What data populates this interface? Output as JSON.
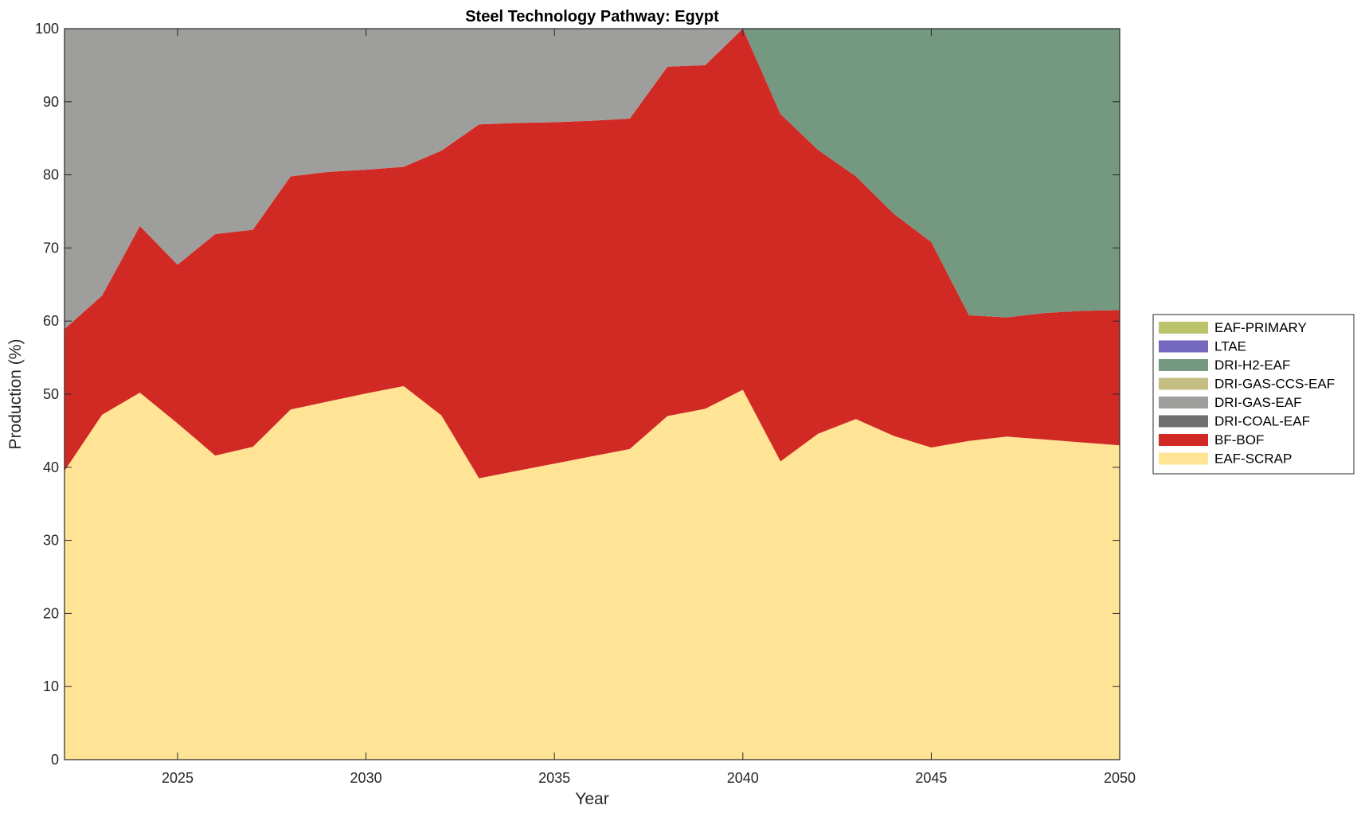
{
  "chart_data": {
    "type": "area",
    "stacked": true,
    "title": "Steel Technology Pathway: Egypt",
    "xlabel": "Year",
    "ylabel": "Production (%)",
    "xlim": [
      2022,
      2050
    ],
    "ylim": [
      0,
      100
    ],
    "xticks": [
      2025,
      2030,
      2035,
      2040,
      2045,
      2050
    ],
    "yticks": [
      0,
      10,
      20,
      30,
      40,
      50,
      60,
      70,
      80,
      90,
      100
    ],
    "grid": false,
    "legend_position": "right",
    "x": [
      2022,
      2023,
      2024,
      2025,
      2026,
      2027,
      2028,
      2029,
      2030,
      2031,
      2032,
      2033,
      2034,
      2035,
      2036,
      2037,
      2038,
      2039,
      2040,
      2041,
      2042,
      2043,
      2044,
      2045,
      2046,
      2047,
      2048,
      2049,
      2050
    ],
    "series": [
      {
        "name": "EAF-SCRAP",
        "color": "#FFE495",
        "values": [
          39.5,
          47.2,
          50.2,
          46.0,
          41.6,
          42.8,
          47.9,
          49.0,
          50.1,
          51.1,
          47.1,
          38.5,
          39.5,
          40.5,
          41.5,
          42.5,
          47.0,
          48.0,
          50.6,
          40.8,
          44.6,
          46.6,
          44.3,
          42.7,
          43.6,
          44.2,
          43.8,
          43.4,
          43.0
        ]
      },
      {
        "name": "BF-BOF",
        "color": "#D12A24",
        "values": [
          19.4,
          16.3,
          22.8,
          21.7,
          30.3,
          29.7,
          31.9,
          31.4,
          30.6,
          30.0,
          36.2,
          48.4,
          47.6,
          46.7,
          45.9,
          45.2,
          47.8,
          47.0,
          49.4,
          47.5,
          38.8,
          33.2,
          30.4,
          28.1,
          17.2,
          16.3,
          17.3,
          18.0,
          18.5
        ]
      },
      {
        "name": "DRI-COAL-EAF",
        "color": "#6E6E6E",
        "values": [
          0,
          0,
          0,
          0,
          0,
          0,
          0,
          0,
          0,
          0,
          0,
          0,
          0,
          0,
          0,
          0,
          0,
          0,
          0,
          0,
          0,
          0,
          0,
          0,
          0,
          0,
          0,
          0,
          0
        ]
      },
      {
        "name": "DRI-GAS-EAF",
        "color": "#9E9E9C",
        "values": [
          41.1,
          36.5,
          27.0,
          32.3,
          28.1,
          27.5,
          20.2,
          19.6,
          19.3,
          18.9,
          16.7,
          13.1,
          12.9,
          12.8,
          12.6,
          12.3,
          5.2,
          5.0,
          0,
          0,
          0,
          0,
          0,
          0,
          0,
          0,
          0,
          0,
          0
        ]
      },
      {
        "name": "DRI-GAS-CCS-EAF",
        "color": "#C4BE82",
        "values": [
          0,
          0,
          0,
          0,
          0,
          0,
          0,
          0,
          0,
          0,
          0,
          0,
          0,
          0,
          0,
          0,
          0,
          0,
          0,
          0,
          0,
          0,
          0,
          0,
          0,
          0,
          0,
          0,
          0
        ]
      },
      {
        "name": "DRI-H2-EAF",
        "color": "#759880",
        "values": [
          0,
          0,
          0,
          0,
          0,
          0,
          0,
          0,
          0,
          0,
          0,
          0,
          0,
          0,
          0,
          0,
          0,
          0,
          0,
          11.7,
          16.6,
          20.2,
          25.3,
          29.2,
          39.2,
          39.5,
          38.9,
          38.6,
          38.5
        ]
      },
      {
        "name": "LTAE",
        "color": "#7468BF",
        "values": [
          0,
          0,
          0,
          0,
          0,
          0,
          0,
          0,
          0,
          0,
          0,
          0,
          0,
          0,
          0,
          0,
          0,
          0,
          0,
          0,
          0,
          0,
          0,
          0,
          0,
          0,
          0,
          0,
          0
        ]
      },
      {
        "name": "EAF-PRIMARY",
        "color": "#BCC46B",
        "values": [
          0,
          0,
          0,
          0,
          0,
          0,
          0,
          0,
          0,
          0,
          0,
          0,
          0,
          0,
          0,
          0,
          0,
          0,
          0,
          0,
          0,
          0,
          0,
          0,
          0,
          0,
          0,
          0,
          0
        ]
      }
    ]
  }
}
